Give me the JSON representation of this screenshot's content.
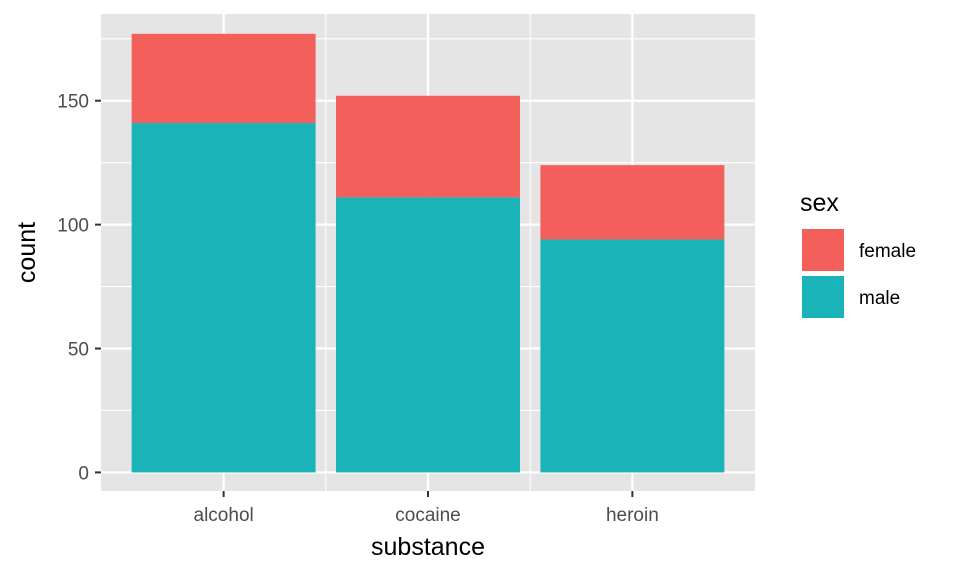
{
  "chart_data": {
    "type": "bar",
    "stacked": true,
    "categories": [
      "alcohol",
      "cocaine",
      "heroin"
    ],
    "series": [
      {
        "name": "male",
        "values": [
          141,
          111,
          94
        ],
        "color": "#19b3b8"
      },
      {
        "name": "female",
        "values": [
          36,
          41,
          30
        ],
        "color": "#f35f5b"
      }
    ],
    "xlabel": "substance",
    "ylabel": "count",
    "ylim": [
      -7.5,
      185
    ],
    "yticks": [
      0,
      50,
      100,
      150
    ],
    "ytick_labels": [
      "0",
      "50",
      "100",
      "150"
    ],
    "legend": {
      "title": "sex",
      "entries": [
        "female",
        "male"
      ],
      "placement": "right"
    },
    "grid": true,
    "panel_background": "#e5e5e5",
    "gridline_color": "#ffffff"
  }
}
